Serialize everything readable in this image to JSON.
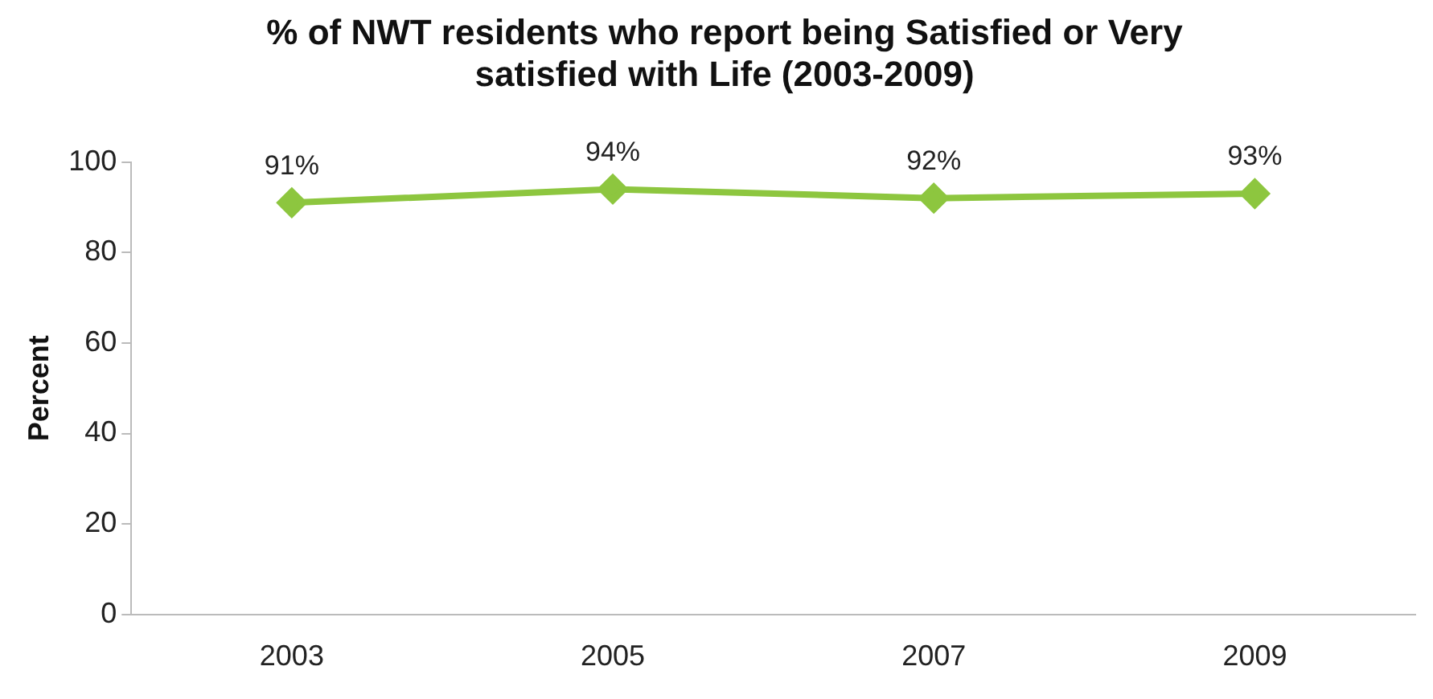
{
  "chart_data": {
    "type": "line",
    "title": [
      "% of NWT residents who report being Satisfied or Very",
      "satisfied with Life (2003-2009)"
    ],
    "ylabel": "Percent",
    "categories": [
      "2003",
      "2005",
      "2007",
      "2009"
    ],
    "series": [
      {
        "color": "#8dc63f",
        "values": [
          91,
          94,
          92,
          93
        ],
        "value_labels": [
          "91%",
          "94%",
          "92%",
          "93%"
        ]
      }
    ],
    "ylim": [
      0,
      100
    ],
    "yticks": [
      0,
      20,
      40,
      60,
      80,
      100
    ],
    "grid": false,
    "legend": false,
    "marker": "diamond",
    "line_style": "solid"
  }
}
